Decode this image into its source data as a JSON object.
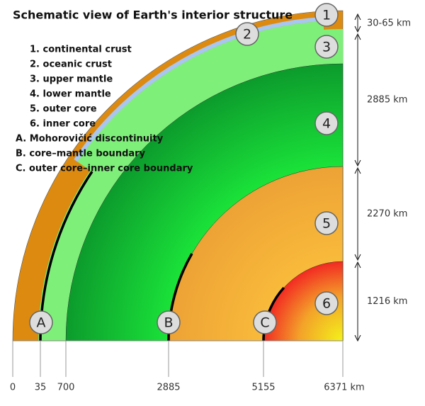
{
  "title": "Schematic view of Earth's interior structure",
  "legend": [
    "1. continental crust",
    "2. oceanic crust",
    "3. upper mantle",
    "4. lower mantle",
    "5. outer core",
    "6. inner core",
    "A. Mohorovičić discontinuity",
    "B. core–mantle boundary",
    "C. outer core–inner core boundary"
  ],
  "markers": [
    "1",
    "2",
    "3",
    "4",
    "5",
    "6",
    "A",
    "B",
    "C"
  ],
  "depths": [
    "30-65 km",
    "2885 km",
    "2270 km",
    "1216 km"
  ],
  "axis_ticks": [
    "0",
    "35",
    "700",
    "2885",
    "5155",
    "6371 km"
  ]
}
